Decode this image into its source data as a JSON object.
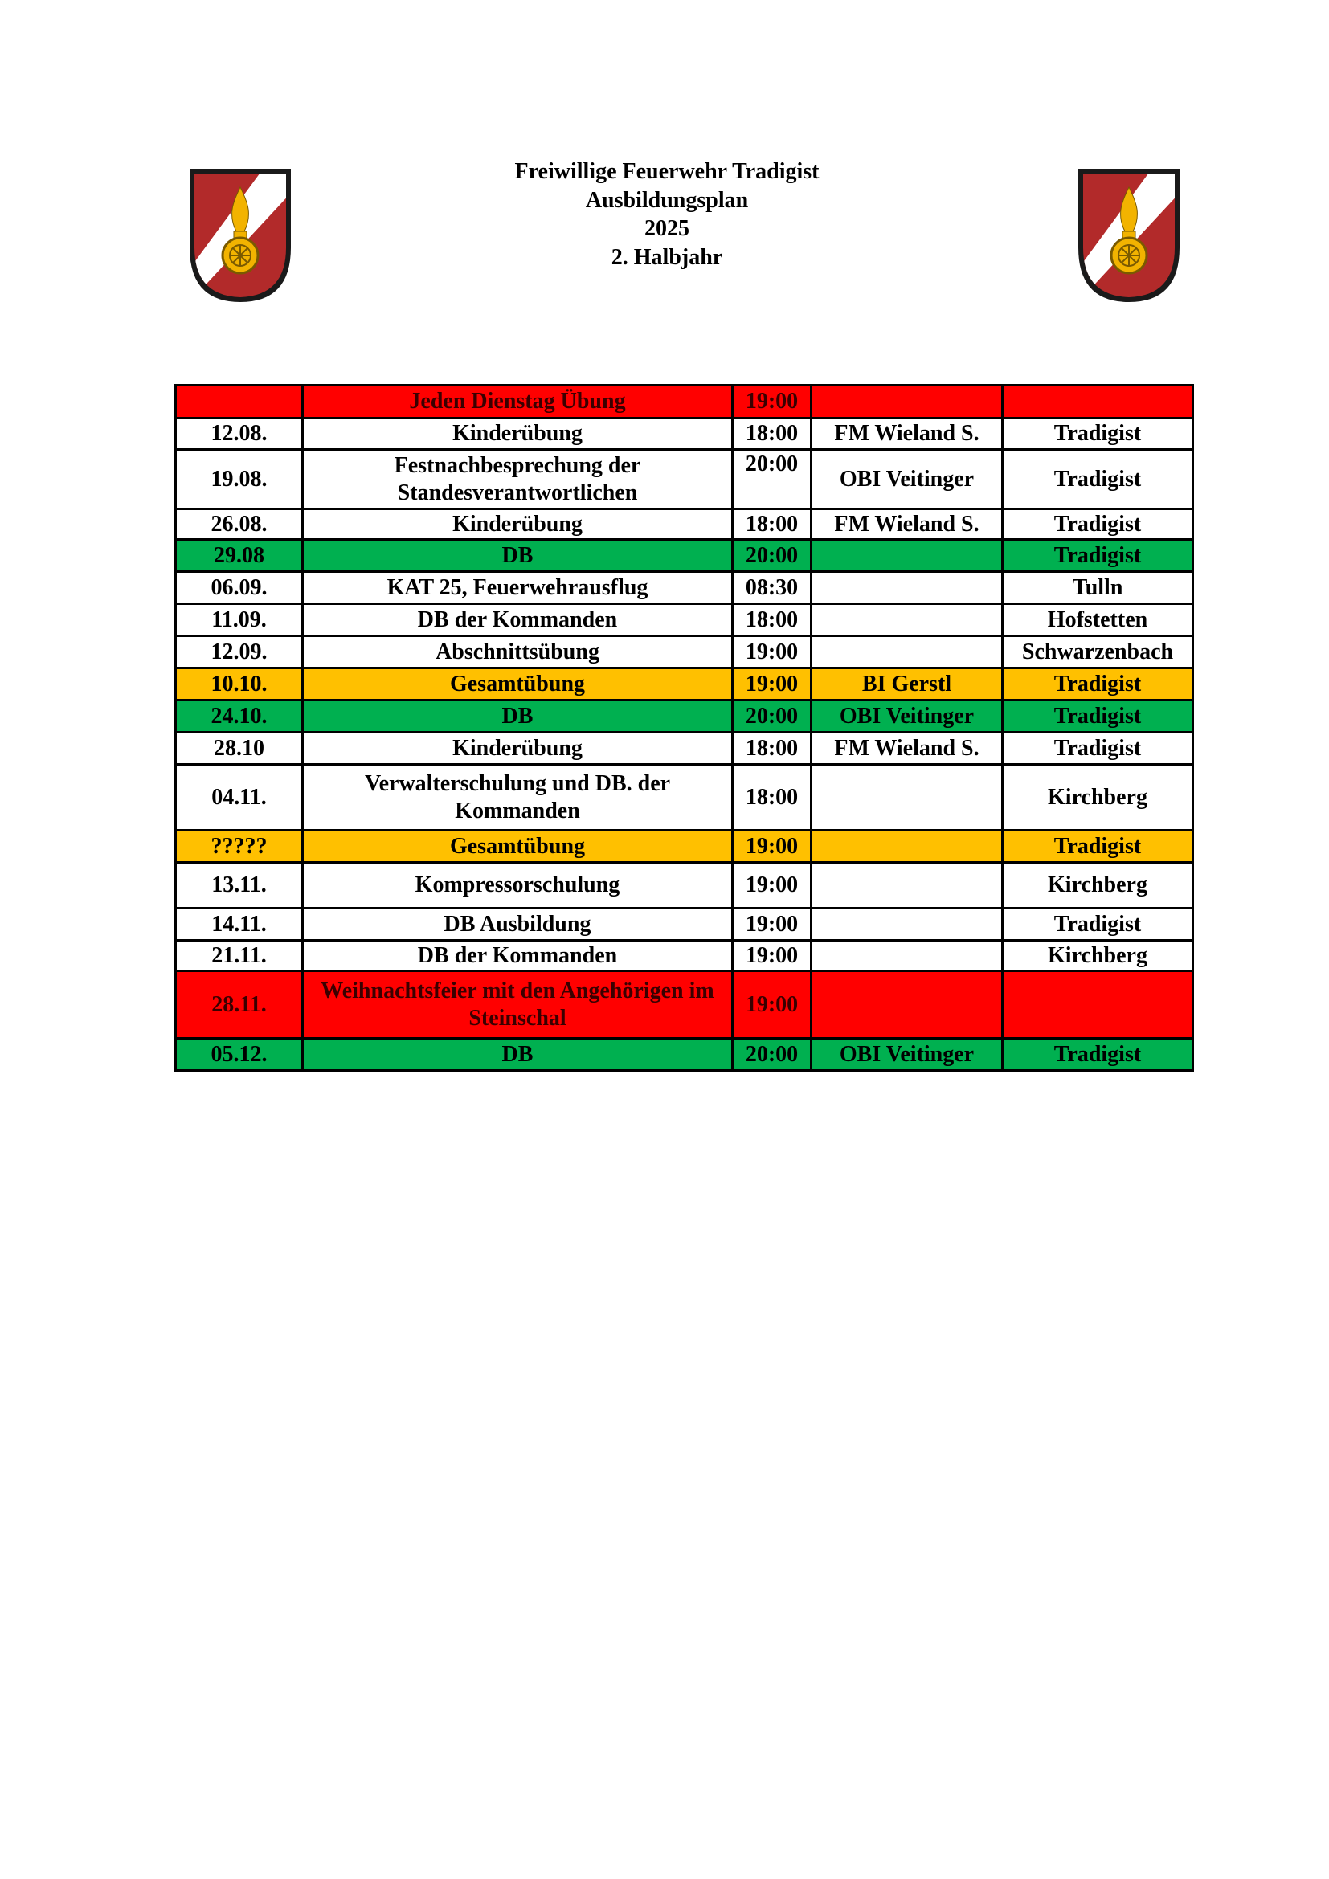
{
  "header": {
    "lines": [
      "Freiwillige Feuerwehr Tradigist",
      "Ausbildungsplan",
      "2025",
      "2. Halbjahr"
    ],
    "logo_icon": "fire-brigade-emblem-icon"
  },
  "colors": {
    "red": "#ff0000",
    "green": "#00b050",
    "orange": "#ffc000"
  },
  "schedule": {
    "rows": [
      {
        "date": "",
        "event": "Jeden Dienstag Übung",
        "time": "19:00",
        "lead": "",
        "place": "",
        "color": "red"
      },
      {
        "date": "12.08.",
        "event": "Kinderübung",
        "time": "18:00",
        "lead": "FM Wieland S.",
        "place": "Tradigist",
        "color": "white"
      },
      {
        "date": "19.08.",
        "event": "Festnachbesprechung der Standesverantwortlichen",
        "time": "20:00",
        "lead": "OBI Veitinger",
        "place": "Tradigist",
        "color": "white"
      },
      {
        "date": "26.08.",
        "event": "Kinderübung",
        "time": "18:00",
        "lead": "FM Wieland S.",
        "place": "Tradigist",
        "color": "white"
      },
      {
        "date": "29.08",
        "event": "DB",
        "time": "20:00",
        "lead": "",
        "place": "Tradigist",
        "color": "green"
      },
      {
        "date": "06.09.",
        "event": "KAT 25, Feuerwehrausflug",
        "time": "08:30",
        "lead": "",
        "place": "Tulln",
        "color": "white"
      },
      {
        "date": "11.09.",
        "event": "DB der Kommanden",
        "time": "18:00",
        "lead": "",
        "place": "Hofstetten",
        "color": "white"
      },
      {
        "date": "12.09.",
        "event": "Abschnittsübung",
        "time": "19:00",
        "lead": "",
        "place": "Schwarzenbach",
        "color": "white"
      },
      {
        "date": "10.10.",
        "event": "Gesamtübung",
        "time": "19:00",
        "lead": "BI Gerstl",
        "place": "Tradigist",
        "color": "orange"
      },
      {
        "date": "24.10.",
        "event": "DB",
        "time": "20:00",
        "lead": "OBI Veitinger",
        "place": "Tradigist",
        "color": "green"
      },
      {
        "date": "28.10",
        "event": "Kinderübung",
        "time": "18:00",
        "lead": "FM Wieland S.",
        "place": "Tradigist",
        "color": "white"
      },
      {
        "date": "04.11.",
        "event": "Verwalterschulung und DB. der Kommanden",
        "time": "18:00",
        "lead": "",
        "place": "Kirchberg",
        "color": "white"
      },
      {
        "date": "?????",
        "event": "Gesamtübung",
        "time": "19:00",
        "lead": "",
        "place": "Tradigist",
        "color": "orange"
      },
      {
        "date": "13.11.",
        "event": "Kompressorschulung",
        "time": "19:00",
        "lead": "",
        "place": "Kirchberg",
        "color": "white"
      },
      {
        "date": "14.11.",
        "event": "DB Ausbildung",
        "time": "19:00",
        "lead": "",
        "place": "Tradigist",
        "color": "white"
      },
      {
        "date": "21.11.",
        "event": "DB der Kommanden",
        "time": "19:00",
        "lead": "",
        "place": "Kirchberg",
        "color": "white"
      },
      {
        "date": "28.11.",
        "event": "Weihnachtsfeier mit den Angehörigen im Steinschal",
        "time": "19:00",
        "lead": "",
        "place": "",
        "color": "red"
      },
      {
        "date": "05.12.",
        "event": "DB",
        "time": "20:00",
        "lead": "OBI Veitinger",
        "place": "Tradigist",
        "color": "green"
      }
    ]
  }
}
